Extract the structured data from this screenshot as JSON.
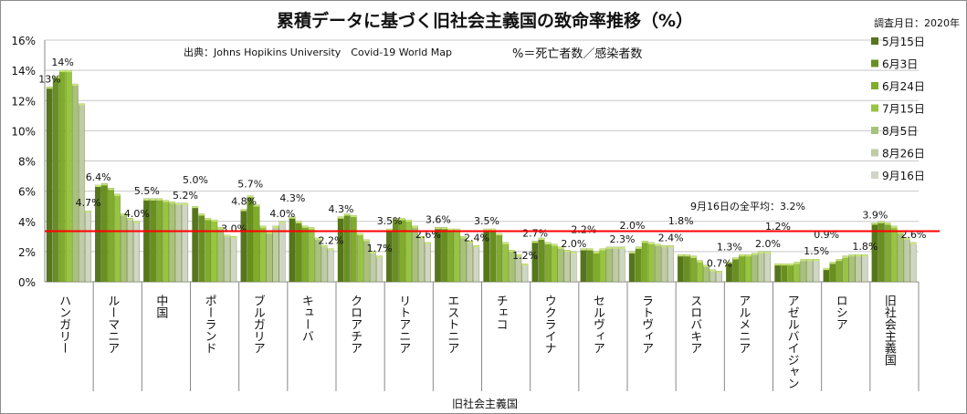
{
  "chart_data": {
    "type": "bar",
    "title": "累積データに基づく旧社会主義国の致命率推移（%）",
    "survey_date": "調査月日：2020年",
    "source": "出典：Johns Hopikins University　Covid-19 World Map",
    "formula": "%＝死亡者数／感染者数",
    "average_note": "9月16日の全平均：3.2%",
    "average_value": 3.2,
    "xlabel": "旧社会主義国",
    "ylabel": "",
    "ylim": [
      0,
      16
    ],
    "yticks": [
      "0%",
      "2%",
      "4%",
      "6%",
      "8%",
      "10%",
      "12%",
      "14%",
      "16%"
    ],
    "legend_position": "right",
    "colors": [
      "#55761a",
      "#68901f",
      "#7fac2b",
      "#98c540",
      "#a9c27a",
      "#bfcca6",
      "#d0d6c4"
    ],
    "accent_line_color": "#ff0000",
    "categories": [
      "ハンガリー",
      "ルーマニア",
      "中国",
      "ポーランド",
      "ブルガリア",
      "キューバ",
      "クロアチア",
      "リトアニア",
      "エストニア",
      "チェコ",
      "ウクライナ",
      "セルヴィア",
      "ラトヴィア",
      "スロバキア",
      "アルメニア",
      "アゼルバイジャン",
      "ロシア",
      "旧社会主義国"
    ],
    "series": [
      {
        "name": "5月15日",
        "values": [
          12.9,
          6.4,
          5.5,
          5.0,
          4.8,
          4.3,
          4.3,
          3.5,
          3.6,
          3.5,
          2.7,
          2.2,
          2.0,
          1.8,
          1.3,
          1.2,
          0.9,
          3.9
        ]
      },
      {
        "name": "6月3日",
        "values": [
          13.6,
          6.5,
          5.5,
          4.5,
          5.7,
          4.0,
          4.5,
          4.2,
          3.6,
          3.5,
          2.9,
          2.2,
          2.3,
          1.8,
          1.6,
          1.2,
          1.3,
          4.0
        ]
      },
      {
        "name": "6月24日",
        "values": [
          14.0,
          6.2,
          5.5,
          4.2,
          5.1,
          3.7,
          4.4,
          4.2,
          3.5,
          3.2,
          2.6,
          2.0,
          2.7,
          1.7,
          1.8,
          1.2,
          1.5,
          3.9
        ]
      },
      {
        "name": "7月15日",
        "values": [
          14.0,
          5.8,
          5.4,
          4.1,
          3.7,
          3.6,
          3.2,
          4.1,
          3.5,
          2.6,
          2.5,
          2.2,
          2.6,
          1.4,
          1.8,
          1.3,
          1.7,
          3.7
        ]
      },
      {
        "name": "8月5日",
        "values": [
          13.1,
          4.5,
          5.3,
          3.6,
          3.3,
          2.9,
          2.8,
          3.7,
          3.0,
          2.1,
          2.3,
          2.3,
          2.5,
          1.1,
          1.9,
          1.5,
          1.8,
          3.3
        ]
      },
      {
        "name": "8月26日",
        "values": [
          11.8,
          4.2,
          5.2,
          3.1,
          3.7,
          2.4,
          2.0,
          3.0,
          2.7,
          1.8,
          2.1,
          2.3,
          2.4,
          0.8,
          2.0,
          1.5,
          1.8,
          2.9
        ]
      },
      {
        "name": "9月16日",
        "values": [
          4.7,
          4.0,
          5.2,
          3.0,
          4.0,
          2.2,
          1.7,
          2.6,
          2.4,
          1.2,
          2.0,
          2.3,
          2.4,
          0.7,
          2.0,
          1.5,
          1.8,
          2.6
        ]
      }
    ],
    "data_labels": [
      [
        [
          0,
          "13%"
        ],
        [
          2,
          "14%"
        ],
        [
          6,
          "4.7%"
        ]
      ],
      [
        [
          0,
          "6.4%"
        ],
        [
          6,
          "4.0%"
        ]
      ],
      [
        [
          0,
          "5.5%"
        ],
        [
          6,
          "5.2%"
        ]
      ],
      [
        [
          0,
          "5.0%"
        ],
        [
          6,
          "3.0%"
        ]
      ],
      [
        [
          0,
          "4.8%"
        ],
        [
          1,
          "5.7%"
        ],
        [
          6,
          "4.0%"
        ]
      ],
      [
        [
          0,
          "4.3%"
        ],
        [
          6,
          "2.2%"
        ]
      ],
      [
        [
          0,
          "4.3%"
        ],
        [
          6,
          "1.7%"
        ]
      ],
      [
        [
          0,
          "3.5%"
        ],
        [
          6,
          "2.6%"
        ]
      ],
      [
        [
          0,
          "3.6%"
        ],
        [
          6,
          "2.4%"
        ]
      ],
      [
        [
          0,
          "3.5%"
        ],
        [
          6,
          "1.2%"
        ]
      ],
      [
        [
          0,
          "2.7%"
        ],
        [
          6,
          "2.0%"
        ]
      ],
      [
        [
          0,
          "2.2%"
        ],
        [
          6,
          "2.3%"
        ]
      ],
      [
        [
          0,
          "2.0%"
        ],
        [
          6,
          "2.4%"
        ]
      ],
      [
        [
          0,
          "1.8%"
        ],
        [
          6,
          "0.7%"
        ]
      ],
      [
        [
          0,
          "1.3%"
        ],
        [
          6,
          "2.0%"
        ]
      ],
      [
        [
          0,
          "1.2%"
        ],
        [
          6,
          "1.5%"
        ]
      ],
      [
        [
          0,
          "0.9%"
        ],
        [
          6,
          "1.8%"
        ]
      ],
      [
        [
          0,
          "3.9%"
        ],
        [
          6,
          "2.6%"
        ]
      ]
    ]
  }
}
